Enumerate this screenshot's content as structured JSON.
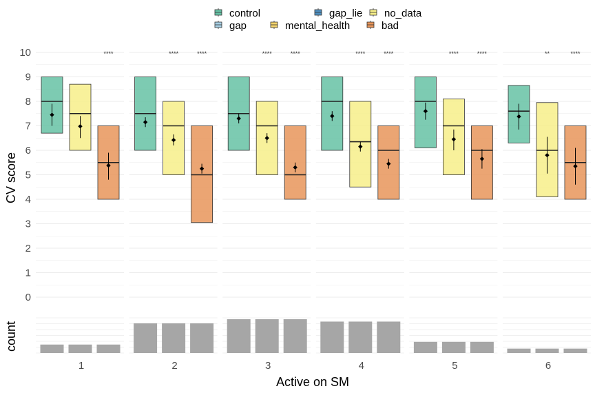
{
  "chart_data": {
    "type": "boxplot",
    "xlabel": "Active on SM",
    "ylabel": "CV score",
    "count_label": "count",
    "ylim": [
      0,
      10
    ],
    "y_ticks": [
      "0",
      "1",
      "2",
      "3",
      "4",
      "5",
      "6",
      "7",
      "8",
      "9",
      "10"
    ],
    "legend": [
      "control",
      "gap",
      "gap_lie",
      "mental_health",
      "no_data",
      "bad"
    ],
    "colors": {
      "control": "#66c2a5",
      "gap": "#a6cee3",
      "gap_lie": "#4f8fbf",
      "mental_health": "#f2d36b",
      "no_data": "#f7ef8a",
      "bad": "#e8955a"
    },
    "panels": [
      {
        "label": "1",
        "groups": [
          {
            "series": "control",
            "q1": 6.7,
            "median": 8.0,
            "q3": 9.0,
            "mean": 7.45,
            "ci": [
              7.0,
              7.9
            ],
            "count": 0.25,
            "sig": ""
          },
          {
            "series": "no_data",
            "q1": 6.0,
            "median": 7.5,
            "q3": 8.7,
            "mean": 6.98,
            "ci": [
              6.5,
              7.4
            ],
            "count": 0.25,
            "sig": ""
          },
          {
            "series": "bad",
            "q1": 4.0,
            "median": 5.5,
            "q3": 7.0,
            "mean": 5.38,
            "ci": [
              4.8,
              5.9
            ],
            "count": 0.25,
            "sig": "****"
          }
        ]
      },
      {
        "label": "2",
        "groups": [
          {
            "series": "control",
            "q1": 6.0,
            "median": 7.5,
            "q3": 9.0,
            "mean": 7.15,
            "ci": [
              6.95,
              7.35
            ],
            "count": 0.88,
            "sig": ""
          },
          {
            "series": "no_data",
            "q1": 5.0,
            "median": 7.0,
            "q3": 8.0,
            "mean": 6.42,
            "ci": [
              6.2,
              6.65
            ],
            "count": 0.88,
            "sig": "****"
          },
          {
            "series": "bad",
            "q1": 3.05,
            "median": 5.0,
            "q3": 7.0,
            "mean": 5.25,
            "ci": [
              5.05,
              5.45
            ],
            "count": 0.88,
            "sig": "****"
          }
        ]
      },
      {
        "label": "3",
        "groups": [
          {
            "series": "control",
            "q1": 6.0,
            "median": 7.5,
            "q3": 9.0,
            "mean": 7.3,
            "ci": [
              7.1,
              7.5
            ],
            "count": 1.0,
            "sig": ""
          },
          {
            "series": "no_data",
            "q1": 5.0,
            "median": 7.0,
            "q3": 8.0,
            "mean": 6.5,
            "ci": [
              6.3,
              6.7
            ],
            "count": 1.0,
            "sig": "****"
          },
          {
            "series": "bad",
            "q1": 4.0,
            "median": 5.0,
            "q3": 7.0,
            "mean": 5.3,
            "ci": [
              5.1,
              5.5
            ],
            "count": 1.0,
            "sig": "****"
          }
        ]
      },
      {
        "label": "4",
        "groups": [
          {
            "series": "control",
            "q1": 6.0,
            "median": 8.0,
            "q3": 9.0,
            "mean": 7.4,
            "ci": [
              7.2,
              7.6
            ],
            "count": 0.93,
            "sig": ""
          },
          {
            "series": "no_data",
            "q1": 4.5,
            "median": 6.35,
            "q3": 8.0,
            "mean": 6.15,
            "ci": [
              5.95,
              6.35
            ],
            "count": 0.93,
            "sig": "****"
          },
          {
            "series": "bad",
            "q1": 4.0,
            "median": 6.0,
            "q3": 7.0,
            "mean": 5.45,
            "ci": [
              5.25,
              5.65
            ],
            "count": 0.93,
            "sig": "****"
          }
        ]
      },
      {
        "label": "5",
        "groups": [
          {
            "series": "control",
            "q1": 6.1,
            "median": 8.0,
            "q3": 9.0,
            "mean": 7.6,
            "ci": [
              7.25,
              7.95
            ],
            "count": 0.33,
            "sig": ""
          },
          {
            "series": "no_data",
            "q1": 5.0,
            "median": 7.0,
            "q3": 8.1,
            "mean": 6.45,
            "ci": [
              6.0,
              6.85
            ],
            "count": 0.33,
            "sig": "****"
          },
          {
            "series": "bad",
            "q1": 4.0,
            "median": 6.0,
            "q3": 7.0,
            "mean": 5.65,
            "ci": [
              5.25,
              6.05
            ],
            "count": 0.33,
            "sig": "****"
          }
        ]
      },
      {
        "label": "6",
        "groups": [
          {
            "series": "control",
            "q1": 6.3,
            "median": 7.6,
            "q3": 8.65,
            "mean": 7.38,
            "ci": [
              6.85,
              7.9
            ],
            "count": 0.13,
            "sig": ""
          },
          {
            "series": "no_data",
            "q1": 4.1,
            "median": 6.0,
            "q3": 7.95,
            "mean": 5.8,
            "ci": [
              5.05,
              6.55
            ],
            "count": 0.13,
            "sig": "**"
          },
          {
            "series": "bad",
            "q1": 4.0,
            "median": 5.5,
            "q3": 7.0,
            "mean": 5.35,
            "ci": [
              4.6,
              6.1
            ],
            "count": 0.13,
            "sig": "****"
          }
        ]
      }
    ]
  }
}
